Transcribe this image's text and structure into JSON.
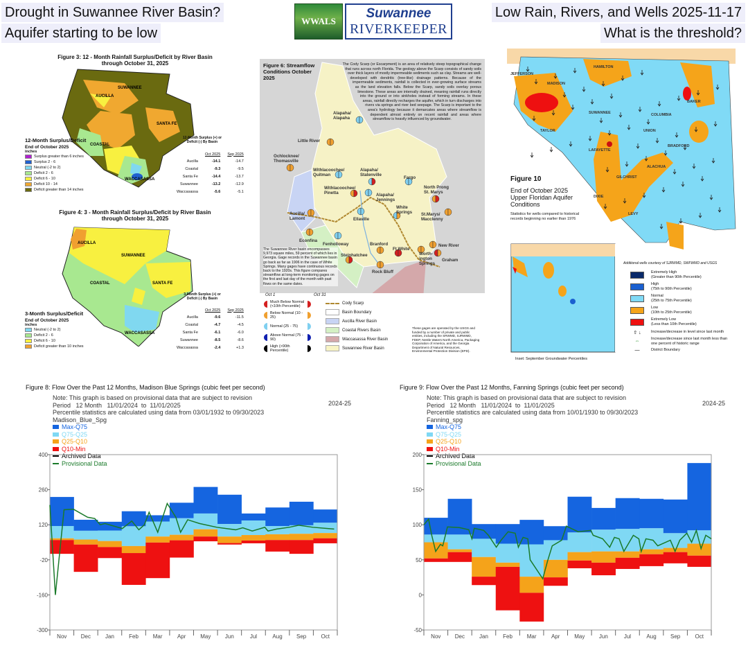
{
  "header": {
    "title_left_1": "Drought in Suwannee River Basin?",
    "title_left_2": "Aquifer starting to be low",
    "title_right_1": "Low Rain, Rivers, and Wells 2025-11-17",
    "title_right_2": "What is the threshold?",
    "logo_wwals": "WWALS",
    "logo_line1": "Suwannee",
    "logo_line2": "RIVERKEEPER"
  },
  "fig3": {
    "title": "Figure 3:  12 - Month Rainfall Surplus/Deficit by River Basin",
    "subtitle": "through October 31, 2025",
    "legend_title": "12-Month Surplus/Deficit",
    "legend_sub": "End of October 2025",
    "legend_units": "inches",
    "legend": [
      {
        "label": "Surplus greater than 6 inches",
        "color": "#b020d0"
      },
      {
        "label": "Surplus 2 - 6",
        "color": "#2060d0"
      },
      {
        "label": "Neutral (-2 to 2)",
        "color": "#80d8f0"
      },
      {
        "label": "Deficit 2 - 6",
        "color": "#a8e890"
      },
      {
        "label": "Deficit 6 - 10",
        "color": "#f8f040"
      },
      {
        "label": "Deficit 10 - 14",
        "color": "#f0a830"
      },
      {
        "label": "Deficit greater than 14 inches",
        "color": "#6a6a10"
      }
    ],
    "basins": [
      "AUCILLA",
      "SUWANNEE",
      "COASTAL",
      "SANTA FE",
      "WACCASASSA"
    ],
    "table_title": "12-Month Surplus (+) or Deficit (-) By Basin",
    "col1": "Oct 2025",
    "col2": "Sep 2025",
    "rows": [
      {
        "basin": "Aucilla",
        "oct": "-14.1",
        "sep": "-14.7"
      },
      {
        "basin": "Coastal",
        "oct": "-9.3",
        "sep": "-9.5"
      },
      {
        "basin": "Santa Fe",
        "oct": "-14.4",
        "sep": "-13.7"
      },
      {
        "basin": "Suwannee",
        "oct": "-13.2",
        "sep": "-12.9"
      },
      {
        "basin": "Waccasassa",
        "oct": "-5.6",
        "sep": "-5.1"
      }
    ]
  },
  "fig4": {
    "title": "Figure 4:  3 - Month Rainfall Surplus/Deficit by River Basin",
    "subtitle": "through October 31, 2025",
    "legend_title": "3-Month Surplus/Deficit",
    "legend_sub": "End of October 2025",
    "legend_units": "inches",
    "legend": [
      {
        "label": "Neutral (-2 to 2)",
        "color": "#80d8f0"
      },
      {
        "label": "Deficit 2 - 6",
        "color": "#a8e890"
      },
      {
        "label": "Deficit 6 - 10",
        "color": "#f8f040"
      },
      {
        "label": "Deficit greater than 10 inches",
        "color": "#f0a030"
      }
    ],
    "basins": [
      "AUCILLA",
      "SUWANNEE",
      "COASTAL",
      "SANTA FE",
      "WACCASASSA"
    ],
    "table_title": "3-Month Surplus (+) or Deficit (-) By Basin",
    "col1": "Oct 2025",
    "col2": "Sep 2025",
    "rows": [
      {
        "basin": "Aucilla",
        "oct": "-9.6",
        "sep": "-11.5"
      },
      {
        "basin": "Coastal",
        "oct": "-4.7",
        "sep": "-4.5"
      },
      {
        "basin": "Santa Fe",
        "oct": "-6.1",
        "sep": "-6.0"
      },
      {
        "basin": "Suwannee",
        "oct": "-8.5",
        "sep": "-8.6"
      },
      {
        "basin": "Waccasassa",
        "oct": "-2.4",
        "sep": "+1.3"
      }
    ]
  },
  "fig6": {
    "title": "Figure 6: Streamflow Conditions October 2025",
    "scarp_text": "The Cody Scarp (or Escarpment) is an area of relatively steep topographical change that runs across north Florida. The geology above the Scarp consists of sandy soils over thick layers of mostly impermeable sediments such as clay. Streams are well-developed with dendritic (tree-like) drainage patterns. Because of the impermeable sediments, rainfall is collected in ever-growing surface streams as the land elevation falls. Below the Scarp, sandy soils overlay porous limestone. These areas are internally drained, meaning rainfall runs directly into the ground or into sinkholes instead of forming streams. In these areas, rainfall directly recharges the aquifer, which in turn discharges into rivers via springs and river bed seepage. The Scarp is important to the area's hydrology because it demarcates areas where streamflow is dependent almost entirely on recent rainfall and areas where streamflow is heavily influenced by groundwater.",
    "basin_text": "The Suwannee River basin encompasses 9,973 square miles, 59 percent of which lies in Georgia. Gage records in the Suwannee basin go back as far as 1906 in the case of White Springs. Many gages have continuous records back to the 1920s. This figure compares streamflow at long-term monitoring gages on the first and last day of the month with past flows on the same dates.",
    "oct1": "Oct 1",
    "oct31": "Oct 31",
    "status_legend": [
      {
        "label": "Much Below Normal (<10th Percentile)",
        "color": "#d42020"
      },
      {
        "label": "Below Normal (10 - 25)",
        "color": "#f0a030"
      },
      {
        "label": "Normal (25 - 75)",
        "color": "#80d0f0"
      },
      {
        "label": "Above Normal (75 - 90)",
        "color": "#1020b0"
      },
      {
        "label": "High (>90th Percentile)",
        "color": "#000000"
      }
    ],
    "map_legend": [
      {
        "label": "Cody Scarp",
        "color": "#b08830"
      },
      {
        "label": "Basin Boundary",
        "color": "#ffffff"
      },
      {
        "label": "Aucilla River Basin",
        "color": "#c8d4f4"
      },
      {
        "label": "Coastal Rivers Basin",
        "color": "#d4f0c4"
      },
      {
        "label": "Waccasassa River Basin",
        "color": "#d4a8aa"
      },
      {
        "label": "Suwannee River Basin",
        "color": "#f8f4c4"
      }
    ],
    "credit": "These gages are operated by the USGS and funded by a number of private and public entities, including the SRWMD, SJRWMD, FDEP, Nestle Waters North America, Packaging Corporation of America, and the Georgia Department of Natural Resources, Environmental Protection Division (EPD).",
    "gauges": [
      {
        "name": "Alapaha/ Alapaha",
        "oct1": "normal",
        "oct31": "normal"
      },
      {
        "name": "Little River",
        "oct1": "below",
        "oct31": "below"
      },
      {
        "name": "Ochlocknee/ Thomasville",
        "oct1": "below",
        "oct31": "below"
      },
      {
        "name": "Withlacoochee/ Quitman",
        "oct1": "normal",
        "oct31": "normal"
      },
      {
        "name": "Alapaha/ Statenville",
        "oct1": "normal",
        "oct31": "much_below"
      },
      {
        "name": "Fargo",
        "oct1": "normal",
        "oct31": "normal"
      },
      {
        "name": "Withlacoochee/ Pinetta",
        "oct1": "below",
        "oct31": "much_below"
      },
      {
        "name": "Alapaha/ Jennings",
        "oct1": "normal",
        "oct31": "normal"
      },
      {
        "name": "North Prong St. Marys",
        "oct1": "below",
        "oct31": "much_below"
      },
      {
        "name": "Aucilla/ Lamont",
        "oct1": "below",
        "oct31": "below"
      },
      {
        "name": "Ellaville",
        "oct1": "normal",
        "oct31": "normal"
      },
      {
        "name": "White Springs",
        "oct1": "normal",
        "oct31": "below"
      },
      {
        "name": "St.Marys/ Macclenny",
        "oct1": "below",
        "oct31": "below"
      },
      {
        "name": "Econfina",
        "oct1": "below",
        "oct31": "below"
      },
      {
        "name": "Fenholloway",
        "oct1": "normal",
        "oct31": "normal"
      },
      {
        "name": "Branford",
        "oct1": "below",
        "oct31": "below"
      },
      {
        "name": "Ft.White",
        "oct1": "much_below",
        "oct31": "much_below"
      },
      {
        "name": "New River",
        "oct1": "below",
        "oct31": "below"
      },
      {
        "name": "Steinhatchee",
        "oct1": "below",
        "oct31": "much_below"
      },
      {
        "name": "Worth- ington Springs",
        "oct1": "below",
        "oct31": "below"
      },
      {
        "name": "Graham",
        "oct1": "much_below",
        "oct31": "below"
      },
      {
        "name": "Rock Bluff",
        "oct1": "below",
        "oct31": "below"
      }
    ],
    "status_colors": {
      "much_below": "#d42020",
      "below": "#f0a030",
      "normal": "#80d0f0"
    }
  },
  "fig10": {
    "title": "Figure 10",
    "subtitle": "End of October 2025 Upper Floridan Aquifer Conditions",
    "note": "Statistics for wells compared to historical records beginning no earlier than 1976",
    "counties": [
      "JEFFERSON",
      "MADISON",
      "HAMILTON",
      "BAKER",
      "TAYLOR",
      "SUWANNEE",
      "COLUMBIA",
      "UNION",
      "LAFAYETTE",
      "BRADFORD",
      "ALACHUA",
      "GILCHRIST",
      "DIXIE",
      "LEVY"
    ],
    "courtesy": "Additional wells courtesy of SJRWMD, SWFWMD and USGS",
    "legend": [
      {
        "label": "Extremely High",
        "sub": "(Greater than 90th Percentile)",
        "color": "#0a2a6a"
      },
      {
        "label": "High",
        "sub": "(75th to 90th Percentile)",
        "color": "#1a60d0"
      },
      {
        "label": "Normal",
        "sub": "(25th to 75th Percentile)",
        "color": "#80daf6"
      },
      {
        "label": "Low",
        "sub": "(10th to 25th Percentile)",
        "color": "#f5a41a"
      },
      {
        "label": "Extremely Low",
        "sub": "(Less than 10th Percentile)",
        "color": "#ee1010"
      }
    ],
    "sym_change": "Increase/decrease in level since last month",
    "sym_small": "Increase/decrease since last month less than one percent of historic range",
    "sym_boundary": "District Boundary",
    "inset_caption": "Inset: September Groundwater Percentiles"
  },
  "chart_data": [
    {
      "type": "area",
      "title": "Figure 8:  Flow Over the Past 12 Months, Madison Blue Springs (cubic feet per second)",
      "note": "Note: This graph is based on provisional data that are subject to revision",
      "period": "Period   12 Month   11/01/2024  to  11/01/2025",
      "stats": "Percentile statistics are calculated using data from 03/01/1932 to 09/30/2023",
      "site": "Madison_Blue_Spg",
      "season": "2024-25",
      "ylim": [
        -300,
        400
      ],
      "yticks": [
        "400",
        "260",
        "120",
        "-20",
        "-160",
        "-300"
      ],
      "categories": [
        "Nov",
        "Dec",
        "Jan",
        "Feb",
        "Mar",
        "Apr",
        "May",
        "Jun",
        "Jul",
        "Aug",
        "Sep",
        "Oct"
      ],
      "grid": false,
      "legend_position": "top-left",
      "legend": [
        {
          "name": "Max-Q75",
          "color": "#1565e0"
        },
        {
          "name": "Q75-Q25",
          "color": "#7fd8f4"
        },
        {
          "name": "Q25-Q10",
          "color": "#f5a31a"
        },
        {
          "name": "Q10-Min",
          "color": "#ee1111"
        },
        {
          "name": "Archived Data",
          "color": "#000000"
        },
        {
          "name": "Provisional Data",
          "color": "#1a7a2a"
        }
      ],
      "bands": {
        "top": [
          231,
          140,
          132,
          174,
          158,
          208,
          271,
          240,
          165,
          189,
          212,
          181
        ],
        "q75": [
          115,
          96,
          97,
          114,
          133,
          146,
          165,
          123,
          137,
          115,
          118,
          128
        ],
        "q25": [
          66,
          61,
          55,
          35,
          73,
          80,
          102,
          73,
          79,
          82,
          84,
          87
        ],
        "q10": [
          59,
          41,
          31,
          7,
          49,
          58,
          73,
          47,
          57,
          59,
          59,
          66
        ],
        "bottom": [
          4,
          -68,
          -13,
          -120,
          -93,
          -11,
          54,
          41,
          46,
          13,
          4,
          46
        ]
      },
      "provisional": {
        "x": [
          "2024-11-01",
          "2024-11-08",
          "2024-11-19",
          "2024-12-01",
          "2024-12-19",
          "2024-12-28",
          "2025-01-04",
          "2025-01-10",
          "2025-02-01",
          "2025-02-13",
          "2025-02-22",
          "2025-03-01",
          "2025-03-07",
          "2025-03-18",
          "2025-03-30",
          "2025-04-10",
          "2025-04-16",
          "2025-04-25",
          "2025-05-10",
          "2025-06-01",
          "2025-06-25",
          "2025-07-04",
          "2025-07-16",
          "2025-08-01",
          "2025-08-05",
          "2025-08-16",
          "2025-09-01",
          "2025-09-13",
          "2025-10-01",
          "2025-10-28"
        ],
        "y": [
          199,
          -160,
          180,
          182,
          150,
          145,
          120,
          125,
          105,
          135,
          100,
          120,
          170,
          90,
          205,
          150,
          90,
          140,
          125,
          110,
          100,
          108,
          95,
          110,
          95,
          103,
          110,
          118,
          110,
          103
        ]
      }
    },
    {
      "type": "area",
      "title": "Figure 9:  Flow Over the Past 12 Months, Fanning Springs (cubic feet per second)",
      "note": "Note: This graph is based on provisional data that are subject to revision",
      "period": "Period   12 Month   11/01/2024  to  11/01/2025",
      "stats": "Percentile statistics are calculated using data from 10/01/1930 to 09/30/2023",
      "site": "Fanning_spg",
      "season": "2024-25",
      "ylim": [
        -50,
        200
      ],
      "yticks": [
        "200",
        "150",
        "100",
        "50",
        "0",
        "-50"
      ],
      "categories": [
        "Nov",
        "Dec",
        "Jan",
        "Feb",
        "Mar",
        "Apr",
        "May",
        "Jun",
        "Jul",
        "Aug",
        "Sep",
        "Oct"
      ],
      "grid": false,
      "legend_position": "top-left",
      "legend": [
        {
          "name": "Max-Q75",
          "color": "#1565e0"
        },
        {
          "name": "Q75-Q25",
          "color": "#7fd8f4"
        },
        {
          "name": "Q25-Q10",
          "color": "#f5a31a"
        },
        {
          "name": "Q10-Min",
          "color": "#ee1111"
        },
        {
          "name": "Archived Data",
          "color": "#000000"
        },
        {
          "name": "Provisional Data",
          "color": "#1a7a2a"
        }
      ],
      "bands": {
        "top": [
          110,
          137,
          101,
          101,
          107,
          98,
          140,
          124,
          138,
          137,
          136,
          188
        ],
        "q75": [
          86,
          86,
          80,
          73,
          72,
          78,
          89,
          93,
          94,
          95,
          88,
          92
        ],
        "q25": [
          75,
          65,
          54,
          46,
          26,
          50,
          61,
          62,
          62,
          65,
          67,
          73
        ],
        "q10": [
          52,
          61,
          26,
          40,
          3,
          25,
          49,
          46,
          53,
          58,
          61,
          56
        ],
        "bottom": [
          47,
          47,
          14,
          -22,
          -38,
          13,
          38,
          28,
          37,
          41,
          45,
          40
        ]
      },
      "provisional": {
        "x": [
          "2024-11-01",
          "2024-11-07",
          "2024-11-11",
          "2024-11-16",
          "2024-11-22",
          "2024-11-25",
          "2024-12-01",
          "2024-12-16",
          "2024-12-28",
          "2025-01-01",
          "2025-01-04",
          "2025-01-16",
          "2025-01-22",
          "2025-02-01",
          "2025-02-07",
          "2025-02-16",
          "2025-02-25",
          "2025-03-01",
          "2025-03-07",
          "2025-03-13",
          "2025-03-16",
          "2025-04-01",
          "2025-04-07",
          "2025-04-13",
          "2025-04-25",
          "2025-05-01",
          "2025-05-16",
          "2025-06-01",
          "2025-06-04",
          "2025-06-16",
          "2025-06-25",
          "2025-07-01",
          "2025-07-07",
          "2025-07-13",
          "2025-07-25",
          "2025-08-01",
          "2025-08-04",
          "2025-08-10",
          "2025-08-19",
          "2025-08-25",
          "2025-09-10",
          "2025-09-16",
          "2025-09-22",
          "2025-10-01",
          "2025-10-07",
          "2025-10-13",
          "2025-10-19",
          "2025-10-25",
          "2025-11-01"
        ],
        "y": [
          100,
          108,
          85,
          62,
          72,
          70,
          97,
          96,
          93,
          80,
          95,
          92,
          85,
          68,
          78,
          90,
          88,
          68,
          82,
          80,
          50,
          23,
          48,
          70,
          78,
          98,
          90,
          92,
          85,
          80,
          68,
          82,
          80,
          62,
          85,
          80,
          62,
          80,
          78,
          70,
          78,
          62,
          78,
          88,
          75,
          92,
          66,
          85,
          80
        ]
      }
    }
  ]
}
